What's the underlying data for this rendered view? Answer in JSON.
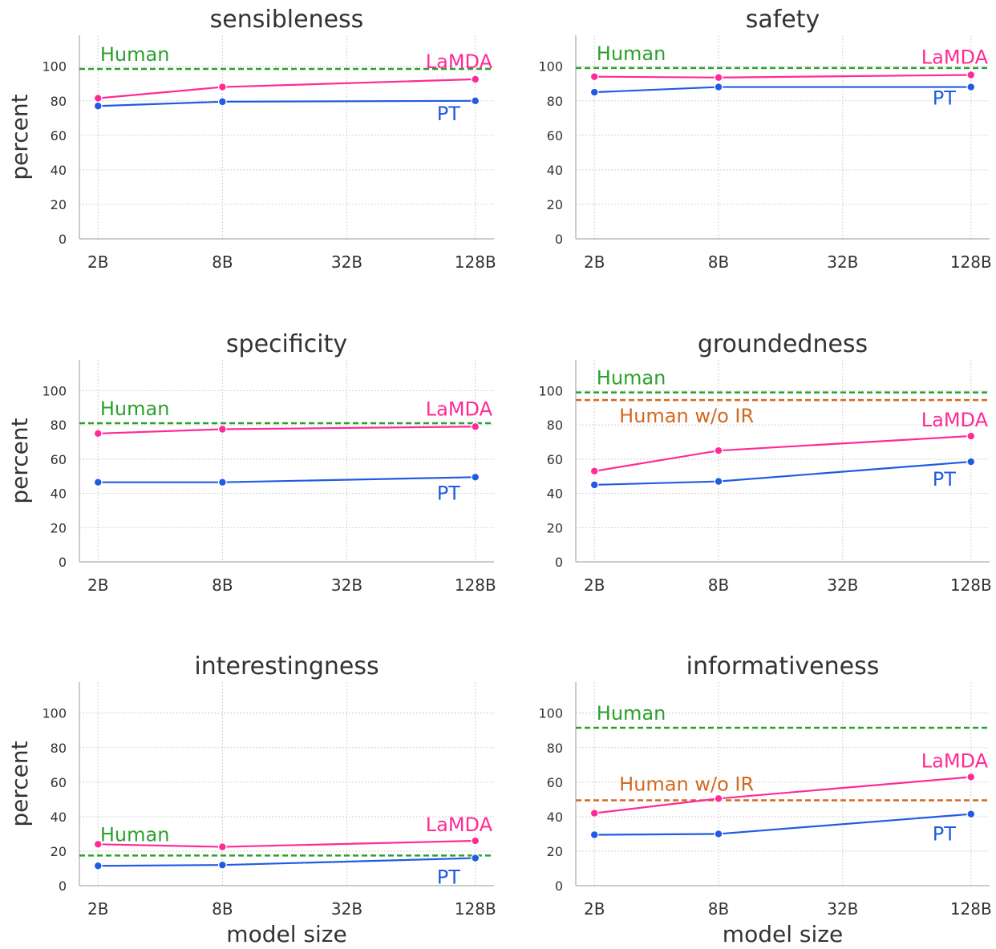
{
  "colors": {
    "lamda": "#ff2a96",
    "pt": "#1f5be3",
    "human": "#2ca02c",
    "human_wo_ir": "#d2691e",
    "grid": "#cccccc",
    "axis": "#bbbbbb",
    "text": "#333333"
  },
  "labels": {
    "human": "Human",
    "human_wo_ir": "Human w/o IR",
    "lamda": "LaMDA",
    "pt": "PT",
    "xlabel": "model size",
    "ylabel": "percent"
  },
  "chart_data": [
    {
      "type": "line",
      "title": "sensibleness",
      "x": [
        "2B",
        "8B",
        "128B"
      ],
      "xticks": [
        "2B",
        "8B",
        "32B",
        "128B"
      ],
      "ylabel": "percent",
      "xlabel": "",
      "ylim": [
        0,
        118
      ],
      "yticks": [
        0,
        20,
        40,
        60,
        80,
        100
      ],
      "grid": true,
      "series": [
        {
          "name": "LaMDA",
          "values": [
            81.5,
            88,
            92.5
          ]
        },
        {
          "name": "PT",
          "values": [
            77,
            79.5,
            80
          ]
        }
      ],
      "reference_lines": [
        {
          "name": "Human",
          "value": 98.5
        }
      ]
    },
    {
      "type": "line",
      "title": "safety",
      "x": [
        "2B",
        "8B",
        "128B"
      ],
      "xticks": [
        "2B",
        "8B",
        "32B",
        "128B"
      ],
      "ylabel": "",
      "xlabel": "",
      "ylim": [
        0,
        118
      ],
      "yticks": [
        0,
        20,
        40,
        60,
        80,
        100
      ],
      "grid": true,
      "series": [
        {
          "name": "LaMDA",
          "values": [
            94,
            93.5,
            95
          ]
        },
        {
          "name": "PT",
          "values": [
            85,
            88,
            88
          ]
        }
      ],
      "reference_lines": [
        {
          "name": "Human",
          "value": 99
        }
      ]
    },
    {
      "type": "line",
      "title": "specificity",
      "x": [
        "2B",
        "8B",
        "128B"
      ],
      "xticks": [
        "2B",
        "8B",
        "32B",
        "128B"
      ],
      "ylabel": "percent",
      "xlabel": "",
      "ylim": [
        0,
        118
      ],
      "yticks": [
        0,
        20,
        40,
        60,
        80,
        100
      ],
      "grid": true,
      "series": [
        {
          "name": "LaMDA",
          "values": [
            75,
            77.5,
            79
          ]
        },
        {
          "name": "PT",
          "values": [
            46.5,
            46.5,
            49.5
          ]
        }
      ],
      "reference_lines": [
        {
          "name": "Human",
          "value": 81
        }
      ]
    },
    {
      "type": "line",
      "title": "groundedness",
      "x": [
        "2B",
        "8B",
        "128B"
      ],
      "xticks": [
        "2B",
        "8B",
        "32B",
        "128B"
      ],
      "ylabel": "",
      "xlabel": "",
      "ylim": [
        0,
        118
      ],
      "yticks": [
        0,
        20,
        40,
        60,
        80,
        100
      ],
      "grid": true,
      "series": [
        {
          "name": "LaMDA",
          "values": [
            53,
            65,
            73.5
          ]
        },
        {
          "name": "PT",
          "values": [
            45,
            47,
            58.5
          ]
        }
      ],
      "reference_lines": [
        {
          "name": "Human",
          "value": 99
        },
        {
          "name": "Human w/o IR",
          "value": 94.5
        }
      ]
    },
    {
      "type": "line",
      "title": "interestingness",
      "x": [
        "2B",
        "8B",
        "128B"
      ],
      "xticks": [
        "2B",
        "8B",
        "32B",
        "128B"
      ],
      "ylabel": "percent",
      "xlabel": "model size",
      "ylim": [
        0,
        118
      ],
      "yticks": [
        0,
        20,
        40,
        60,
        80,
        100
      ],
      "grid": true,
      "series": [
        {
          "name": "LaMDA",
          "values": [
            24,
            22.5,
            26
          ]
        },
        {
          "name": "PT",
          "values": [
            11.5,
            12,
            16
          ]
        }
      ],
      "reference_lines": [
        {
          "name": "Human",
          "value": 17.5
        }
      ]
    },
    {
      "type": "line",
      "title": "informativeness",
      "x": [
        "2B",
        "8B",
        "128B"
      ],
      "xticks": [
        "2B",
        "8B",
        "32B",
        "128B"
      ],
      "ylabel": "",
      "xlabel": "model size",
      "ylim": [
        0,
        118
      ],
      "yticks": [
        0,
        20,
        40,
        60,
        80,
        100
      ],
      "grid": true,
      "series": [
        {
          "name": "LaMDA",
          "values": [
            42,
            50.5,
            63
          ]
        },
        {
          "name": "PT",
          "values": [
            29.5,
            30,
            41.5
          ]
        }
      ],
      "reference_lines": [
        {
          "name": "Human",
          "value": 91.5
        },
        {
          "name": "Human w/o IR",
          "value": 49.5
        }
      ]
    }
  ]
}
